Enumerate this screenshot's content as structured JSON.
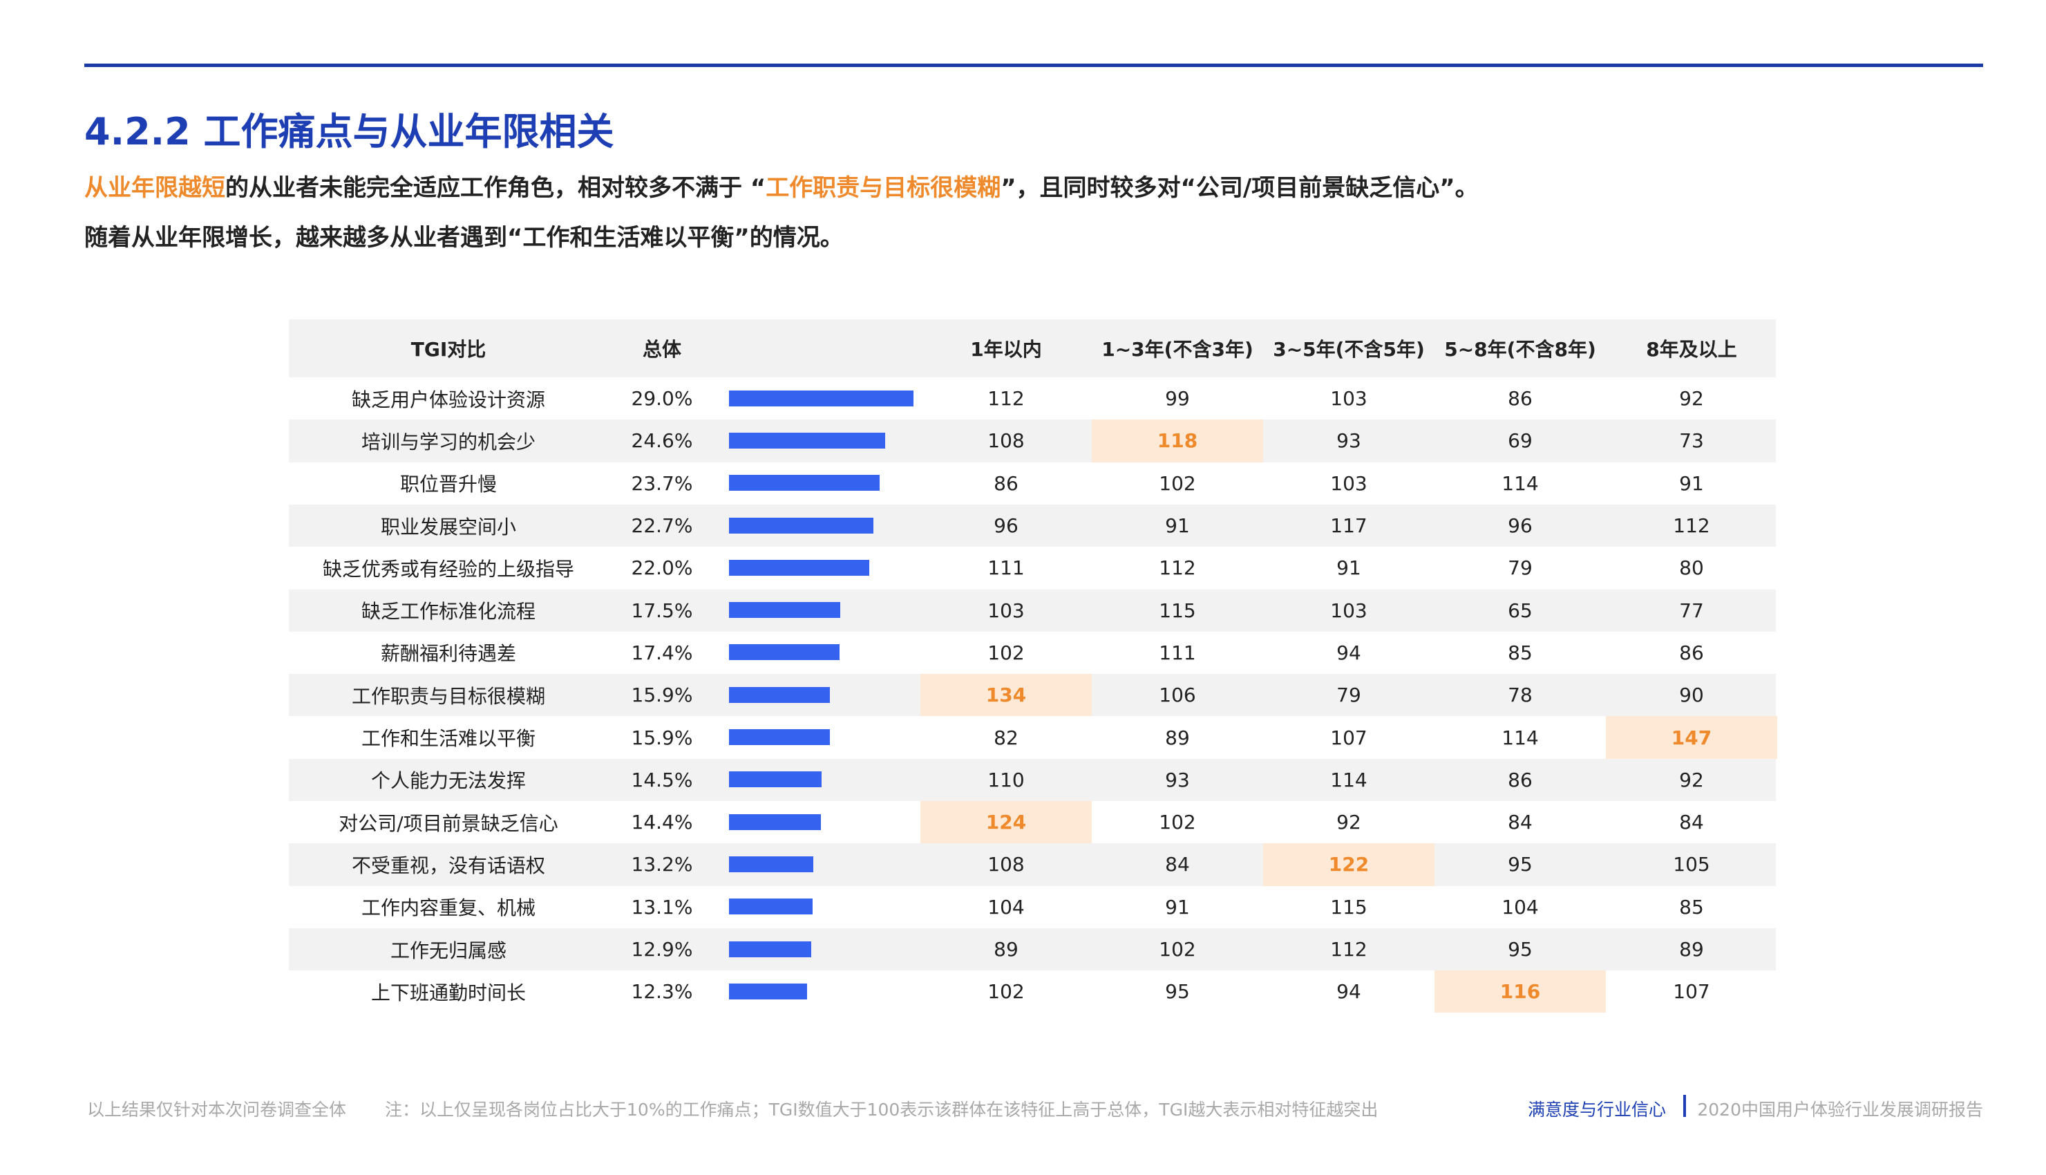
{
  "header": {
    "title": "4.2.2 工作痛点与从业年限相关",
    "lines": [
      [
        {
          "text": "从业年限越短",
          "highlight": true
        },
        {
          "text": "的从业者未能完全适应工作角色，相对较多不满于 “",
          "highlight": false
        },
        {
          "text": "工作职责与目标很模糊",
          "highlight": true
        },
        {
          "text": "”，且同时较多对“公司/项目前景缺乏信心”。",
          "highlight": false
        }
      ],
      [
        {
          "text": "随着从业年限增长，越来越多从业者遇到“工作和生活难以平衡”的情况。",
          "highlight": false
        }
      ]
    ]
  },
  "table": {
    "headers": {
      "label": "TGI对比",
      "overall": "总体",
      "groups": [
        "1年以内",
        "1~3年(不含3年)",
        "3~5年(不含5年)",
        "5~8年(不含8年)",
        "8年及以上"
      ]
    },
    "rows": [
      {
        "label": "缺乏用户体验设计资源",
        "overall": {
          "value": 29.0,
          "label": "29.0%"
        },
        "tgi": [
          112,
          99,
          103,
          86,
          92
        ]
      },
      {
        "label": "培训与学习的机会少",
        "overall": {
          "value": 24.6,
          "label": "24.6%"
        },
        "tgi": [
          108,
          118,
          93,
          69,
          73
        ]
      },
      {
        "label": "职位晋升慢",
        "overall": {
          "value": 23.7,
          "label": "23.7%"
        },
        "tgi": [
          86,
          102,
          103,
          114,
          91
        ]
      },
      {
        "label": "职业发展空间小",
        "overall": {
          "value": 22.7,
          "label": "22.7%"
        },
        "tgi": [
          96,
          91,
          117,
          96,
          112
        ]
      },
      {
        "label": "缺乏优秀或有经验的上级指导",
        "overall": {
          "value": 22.0,
          "label": "22.0%"
        },
        "tgi": [
          111,
          112,
          91,
          79,
          80
        ]
      },
      {
        "label": "缺乏工作标准化流程",
        "overall": {
          "value": 17.5,
          "label": "17.5%"
        },
        "tgi": [
          103,
          115,
          103,
          65,
          77
        ]
      },
      {
        "label": "薪酬福利待遇差",
        "overall": {
          "value": 17.4,
          "label": "17.4%"
        },
        "tgi": [
          102,
          111,
          94,
          85,
          86
        ]
      },
      {
        "label": "工作职责与目标很模糊",
        "overall": {
          "value": 15.9,
          "label": "15.9%"
        },
        "tgi": [
          134,
          106,
          79,
          78,
          90
        ]
      },
      {
        "label": "工作和生活难以平衡",
        "overall": {
          "value": 15.9,
          "label": "15.9%"
        },
        "tgi": [
          82,
          89,
          107,
          114,
          147
        ]
      },
      {
        "label": "个人能力无法发挥",
        "overall": {
          "value": 14.5,
          "label": "14.5%"
        },
        "tgi": [
          110,
          93,
          114,
          86,
          92
        ]
      },
      {
        "label": "对公司/项目前景缺乏信心",
        "overall": {
          "value": 14.4,
          "label": "14.4%"
        },
        "tgi": [
          124,
          102,
          92,
          84,
          84
        ]
      },
      {
        "label": "不受重视，没有话语权",
        "overall": {
          "value": 13.2,
          "label": "13.2%"
        },
        "tgi": [
          108,
          84,
          122,
          95,
          105
        ]
      },
      {
        "label": "工作内容重复、机械",
        "overall": {
          "value": 13.1,
          "label": "13.1%"
        },
        "tgi": [
          104,
          91,
          115,
          104,
          85
        ]
      },
      {
        "label": "工作无归属感",
        "overall": {
          "value": 12.9,
          "label": "12.9%"
        },
        "tgi": [
          89,
          102,
          112,
          95,
          89
        ]
      },
      {
        "label": "上下班通勤时间长",
        "overall": {
          "value": 12.3,
          "label": "12.3%"
        },
        "tgi": [
          102,
          95,
          94,
          116,
          107
        ]
      }
    ],
    "highlights": [
      [
        1,
        1
      ],
      [
        7,
        0
      ],
      [
        8,
        4
      ],
      [
        10,
        0
      ],
      [
        11,
        2
      ],
      [
        14,
        3
      ]
    ]
  },
  "footer": {
    "scope": "以上结果仅针对本次问卷调查全体",
    "note": "注：以上仅呈现各岗位占比大于10%的工作痛点；TGI数值大于100表示该群体在该特征上高于总体，TGI越大表示相对特征越突出",
    "section": "满意度与行业信心",
    "report": "2020中国用户体验行业发展调研报告"
  }
}
